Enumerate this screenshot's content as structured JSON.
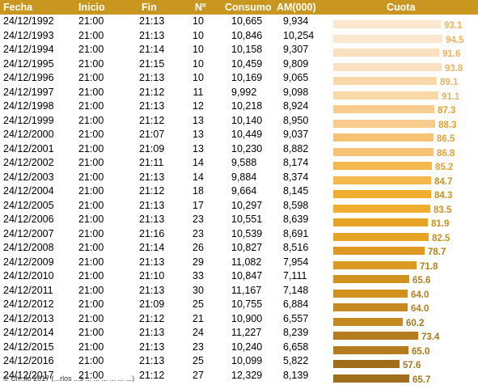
{
  "table": {
    "headers": {
      "fecha": "Fecha",
      "inicio": "Inicio",
      "fin": "Fin",
      "n": "Nº",
      "consumo": "Consumo",
      "am": "AM(000)",
      "cuota": "Cuota"
    },
    "header_color": "#c9971f",
    "cuota_scale_max": 95,
    "rows": [
      {
        "fecha": "24/12/1992",
        "inicio": "21:00",
        "fin": "21:13",
        "n": "10",
        "consumo": "10,665",
        "am": "9,934",
        "cuota": "93.1"
      },
      {
        "fecha": "24/12/1993",
        "inicio": "21:00",
        "fin": "21:13",
        "n": "10",
        "consumo": "10,846",
        "am": "10,254",
        "cuota": "94.5"
      },
      {
        "fecha": "24/12/1994",
        "inicio": "21:00",
        "fin": "21:14",
        "n": "10",
        "consumo": "10,158",
        "am": "9,307",
        "cuota": "91.6"
      },
      {
        "fecha": "24/12/1995",
        "inicio": "21:00",
        "fin": "21:15",
        "n": "10",
        "consumo": "10,459",
        "am": "9,809",
        "cuota": "93.8"
      },
      {
        "fecha": "24/12/1996",
        "inicio": "21:00",
        "fin": "21:13",
        "n": "10",
        "consumo": "10,169",
        "am": "9,065",
        "cuota": "89.1"
      },
      {
        "fecha": "24/12/1997",
        "inicio": "21:00",
        "fin": "21:12",
        "n": "11",
        "consumo": "9,992",
        "am": "9,098",
        "cuota": "91.1"
      },
      {
        "fecha": "24/12/1998",
        "inicio": "21:00",
        "fin": "21:13",
        "n": "12",
        "consumo": "10,218",
        "am": "8,924",
        "cuota": "87.3"
      },
      {
        "fecha": "24/12/1999",
        "inicio": "21:00",
        "fin": "21:12",
        "n": "13",
        "consumo": "10,140",
        "am": "8,950",
        "cuota": "88.3"
      },
      {
        "fecha": "24/12/2000",
        "inicio": "21:00",
        "fin": "21:07",
        "n": "13",
        "consumo": "10,449",
        "am": "9,037",
        "cuota": "86.5"
      },
      {
        "fecha": "24/12/2001",
        "inicio": "21:00",
        "fin": "21:09",
        "n": "13",
        "consumo": "10,230",
        "am": "8,882",
        "cuota": "86.8"
      },
      {
        "fecha": "24/12/2002",
        "inicio": "21:00",
        "fin": "21:11",
        "n": "14",
        "consumo": "9,588",
        "am": "8,174",
        "cuota": "85.2"
      },
      {
        "fecha": "24/12/2003",
        "inicio": "21:00",
        "fin": "21:13",
        "n": "14",
        "consumo": "9,884",
        "am": "8,374",
        "cuota": "84.7"
      },
      {
        "fecha": "24/12/2004",
        "inicio": "21:00",
        "fin": "21:12",
        "n": "18",
        "consumo": "9,664",
        "am": "8,145",
        "cuota": "84.3"
      },
      {
        "fecha": "24/12/2005",
        "inicio": "21:00",
        "fin": "21:13",
        "n": "17",
        "consumo": "10,297",
        "am": "8,598",
        "cuota": "83.5"
      },
      {
        "fecha": "24/12/2006",
        "inicio": "21:00",
        "fin": "21:13",
        "n": "23",
        "consumo": "10,551",
        "am": "8,639",
        "cuota": "81.9"
      },
      {
        "fecha": "24/12/2007",
        "inicio": "21:00",
        "fin": "21:16",
        "n": "23",
        "consumo": "10,539",
        "am": "8,691",
        "cuota": "82.5"
      },
      {
        "fecha": "24/12/2008",
        "inicio": "21:00",
        "fin": "21:14",
        "n": "26",
        "consumo": "10,827",
        "am": "8,516",
        "cuota": "78.7"
      },
      {
        "fecha": "24/12/2009",
        "inicio": "21:00",
        "fin": "21:13",
        "n": "29",
        "consumo": "11,082",
        "am": "7,954",
        "cuota": "71.8"
      },
      {
        "fecha": "24/12/2010",
        "inicio": "21:00",
        "fin": "21:10",
        "n": "33",
        "consumo": "10,847",
        "am": "7,111",
        "cuota": "65.6"
      },
      {
        "fecha": "24/12/2011",
        "inicio": "21:00",
        "fin": "21:13",
        "n": "30",
        "consumo": "11,167",
        "am": "7,148",
        "cuota": "64.0"
      },
      {
        "fecha": "24/12/2012",
        "inicio": "21:00",
        "fin": "21:09",
        "n": "25",
        "consumo": "10,755",
        "am": "6,884",
        "cuota": "64.0"
      },
      {
        "fecha": "24/12/2013",
        "inicio": "21:00",
        "fin": "21:12",
        "n": "21",
        "consumo": "10,900",
        "am": "6,557",
        "cuota": "60.2"
      },
      {
        "fecha": "24/12/2014",
        "inicio": "21:00",
        "fin": "21:13",
        "n": "24",
        "consumo": "11,227",
        "am": "8,239",
        "cuota": "73.4"
      },
      {
        "fecha": "24/12/2015",
        "inicio": "21:00",
        "fin": "21:13",
        "n": "23",
        "consumo": "10,240",
        "am": "6,658",
        "cuota": "65.0"
      },
      {
        "fecha": "24/12/2016",
        "inicio": "21:00",
        "fin": "21:13",
        "n": "25",
        "consumo": "10,099",
        "am": "5,822",
        "cuota": "57.6"
      },
      {
        "fecha": "24/12/2017",
        "inicio": "21:00",
        "fin": "21:12",
        "n": "27",
        "consumo": "12,329",
        "am": "8,139",
        "cuota": "65.7"
      }
    ],
    "bar_colors": [
      "#fbe7cf",
      "#fbe0bf",
      "#f9d7a8",
      "#f8cc8e",
      "#f6c273",
      "#f4b84f",
      "#f0ae2e",
      "#e7a323",
      "#dc9a22",
      "#d1911f",
      "#c58a1f",
      "#b47c1e",
      "#a06d1b"
    ],
    "label_colors": [
      "#e8b35e",
      "#e0a22f",
      "#c89121",
      "#b0801d",
      "#a5771c"
    ]
  },
  "footer": {
    "note": "© Ch..llo 2017 (...rlos ...s ... ... ... ... ... ...)"
  }
}
